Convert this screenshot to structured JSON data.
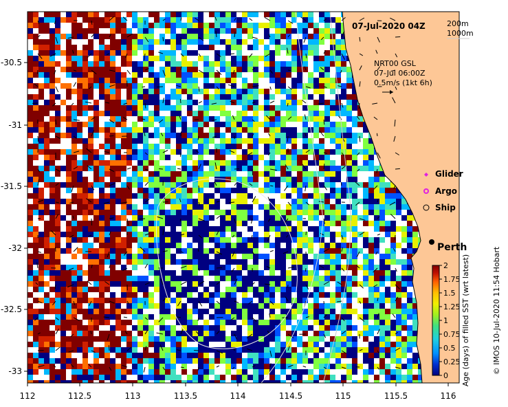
{
  "map": {
    "date_label": "07-Jul-2020 04Z",
    "depth_legend": [
      "200m",
      "1000m"
    ],
    "current_info": [
      "NRT00 GSL",
      "07-Jul 06:00Z",
      "0.5m/s (1kt 6h)"
    ],
    "x_ticks": [
      "112",
      "112.5",
      "113",
      "113.5",
      "114",
      "114.5",
      "115",
      "115.5",
      "116"
    ],
    "y_ticks": [
      "-30.5",
      "-31",
      "-31.5",
      "-32",
      "-32.5",
      "-33"
    ],
    "city_label": "Perth",
    "legend": {
      "glider": "Glider",
      "argo": "Argo",
      "ship": "Ship"
    },
    "colorbar": {
      "ticks": [
        "2",
        "1.75",
        "1.5",
        "1.25",
        "1",
        "0.75",
        "0.5",
        "0.25",
        "0"
      ],
      "label": "Age (days) of filled SST (wrt latest)",
      "colors": [
        "#000080",
        "#0050ff",
        "#00b8ff",
        "#40e0c0",
        "#80ff40",
        "#e8f000",
        "#ffc000",
        "#ff7000",
        "#d02000",
        "#800000"
      ]
    },
    "credit": "© IMOS 10-Jul-2020 11:54 Hobart",
    "colors": {
      "land": "#fdc796",
      "coast": "#000000"
    }
  }
}
